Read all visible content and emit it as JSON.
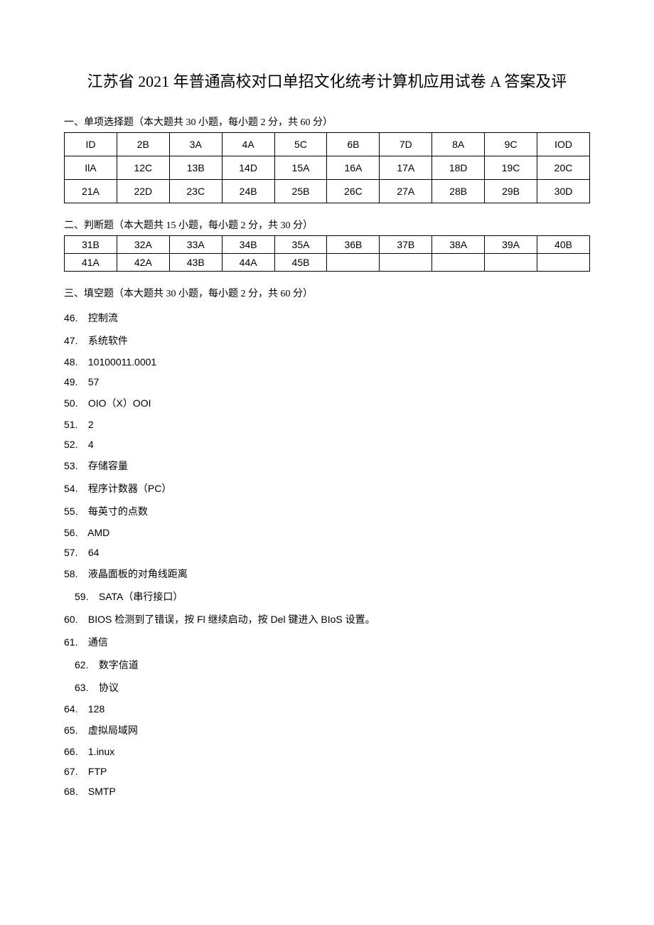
{
  "title": "江苏省 2021 年普通高校对口单招文化统考计算机应用试卷 A 答案及评",
  "section1": {
    "header": "一、单项选择题（本大题共 30 小题，每小题 2 分，共 60 分）",
    "rows": [
      [
        "ID",
        "2B",
        "3A",
        "4A",
        "5C",
        "6B",
        "7D",
        "8A",
        "9C",
        "IOD"
      ],
      [
        "IlA",
        "12C",
        "13B",
        "14D",
        "15A",
        "16A",
        "17A",
        "18D",
        "19C",
        "20C"
      ],
      [
        "21A",
        "22D",
        "23C",
        "24B",
        "25B",
        "26C",
        "27A",
        "28B",
        "29B",
        "30D"
      ]
    ]
  },
  "section2": {
    "header": "二、判断题（本大题共 15 小题，每小题 2 分，共 30 分）",
    "rows": [
      [
        "31B",
        "32A",
        "33A",
        "34B",
        "35A",
        "36B",
        "37B",
        "38A",
        "39A",
        "40B"
      ],
      [
        "41A",
        "42A",
        "43B",
        "44A",
        "45B",
        "",
        "",
        "",
        "",
        ""
      ]
    ]
  },
  "section3": {
    "header": "三、填空题（本大题共 30 小题，每小题 2 分，共 60 分）",
    "items": [
      {
        "num": "46.",
        "text": "控制流",
        "indent": false
      },
      {
        "num": "47.",
        "text": "系统软件",
        "indent": false
      },
      {
        "num": "48.",
        "text": "10100011.0001",
        "indent": false
      },
      {
        "num": "49.",
        "text": "57",
        "indent": false
      },
      {
        "num": "50.",
        "text": "OIO（X）OOI",
        "indent": false
      },
      {
        "num": "51.",
        "text": "2",
        "indent": false
      },
      {
        "num": "52.",
        "text": "4",
        "indent": false
      },
      {
        "num": "53.",
        "text": "存储容量",
        "indent": false
      },
      {
        "num": "54.",
        "text": "程序计数器（PC）",
        "indent": false
      },
      {
        "num": "55.",
        "text": "每英寸的点数",
        "indent": false
      },
      {
        "num": "56.",
        "text": "AMD",
        "indent": false
      },
      {
        "num": "57.",
        "text": "64",
        "indent": false
      },
      {
        "num": "58.",
        "text": "液晶面板的对角线距离",
        "indent": false
      },
      {
        "num": "59.",
        "text": "SATA（串行接口）",
        "indent": true
      },
      {
        "num": "60.",
        "text": "BIOS 检测到了错误，按 Fl 继续启动，按 Del 键进入 BIoS 设置。",
        "indent": false
      },
      {
        "num": "61.",
        "text": "通信",
        "indent": false
      },
      {
        "num": "62.",
        "text": "数字信道",
        "indent": true
      },
      {
        "num": "63.",
        "text": "协议",
        "indent": true
      },
      {
        "num": "64.",
        "text": "128",
        "indent": false
      },
      {
        "num": "65.",
        "text": "虚拟局域网",
        "indent": false
      },
      {
        "num": "66.",
        "text": "1.inux",
        "indent": false
      },
      {
        "num": "67.",
        "text": "FTP",
        "indent": false
      },
      {
        "num": "68.",
        "text": "SMTP",
        "indent": false
      }
    ]
  }
}
